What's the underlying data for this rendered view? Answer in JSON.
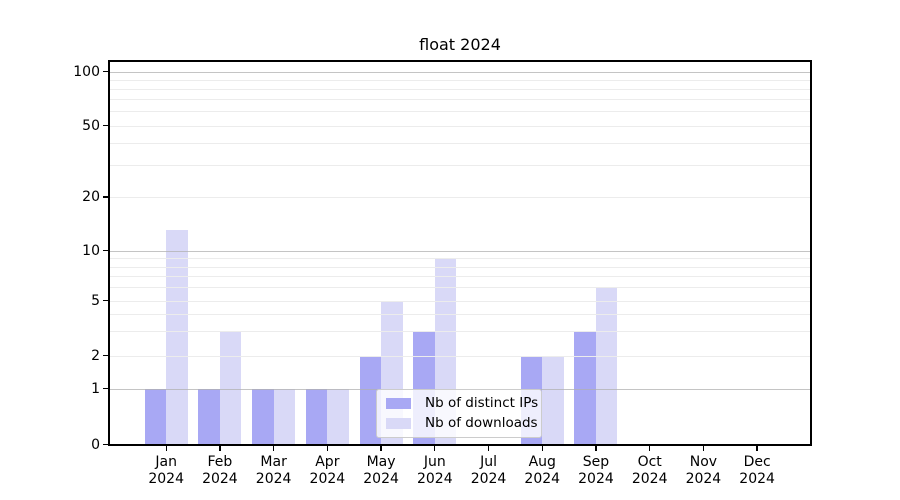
{
  "chart_data": {
    "type": "bar",
    "title": "float 2024",
    "categories": [
      {
        "month": "Jan",
        "year": "2024"
      },
      {
        "month": "Feb",
        "year": "2024"
      },
      {
        "month": "Mar",
        "year": "2024"
      },
      {
        "month": "Apr",
        "year": "2024"
      },
      {
        "month": "May",
        "year": "2024"
      },
      {
        "month": "Jun",
        "year": "2024"
      },
      {
        "month": "Jul",
        "year": "2024"
      },
      {
        "month": "Aug",
        "year": "2024"
      },
      {
        "month": "Sep",
        "year": "2024"
      },
      {
        "month": "Oct",
        "year": "2024"
      },
      {
        "month": "Nov",
        "year": "2024"
      },
      {
        "month": "Dec",
        "year": "2024"
      }
    ],
    "series": [
      {
        "name": "Nb of distinct IPs",
        "color": "#a8a8f4",
        "values": [
          1,
          1,
          1,
          1,
          2,
          3,
          0,
          2,
          3,
          0,
          0,
          0
        ]
      },
      {
        "name": "Nb of downloads",
        "color": "#d9d9f7",
        "values": [
          13,
          3,
          1,
          1,
          5,
          9,
          0,
          2,
          6,
          0,
          0,
          0
        ]
      }
    ],
    "y_ticks": [
      0,
      1,
      2,
      5,
      10,
      20,
      50,
      100
    ],
    "y_major_gridlines": [
      1,
      10,
      100
    ],
    "y_minor_gridlines": [
      2,
      3,
      4,
      5,
      6,
      7,
      8,
      9,
      20,
      30,
      40,
      50,
      60,
      70,
      80,
      90
    ],
    "ylim": [
      0,
      113
    ],
    "y_scale": "log-like with linear 0-1 segment",
    "grid": true,
    "legend_position": "lower center"
  },
  "colors": {
    "bar_distinct_ips": "#a8a8f4",
    "bar_downloads": "#d9d9f7",
    "grid_major": "#b0b0b0",
    "grid_minor": "#ececec",
    "axis": "#000000",
    "legend_border": "#cccccc",
    "background": "#ffffff"
  }
}
